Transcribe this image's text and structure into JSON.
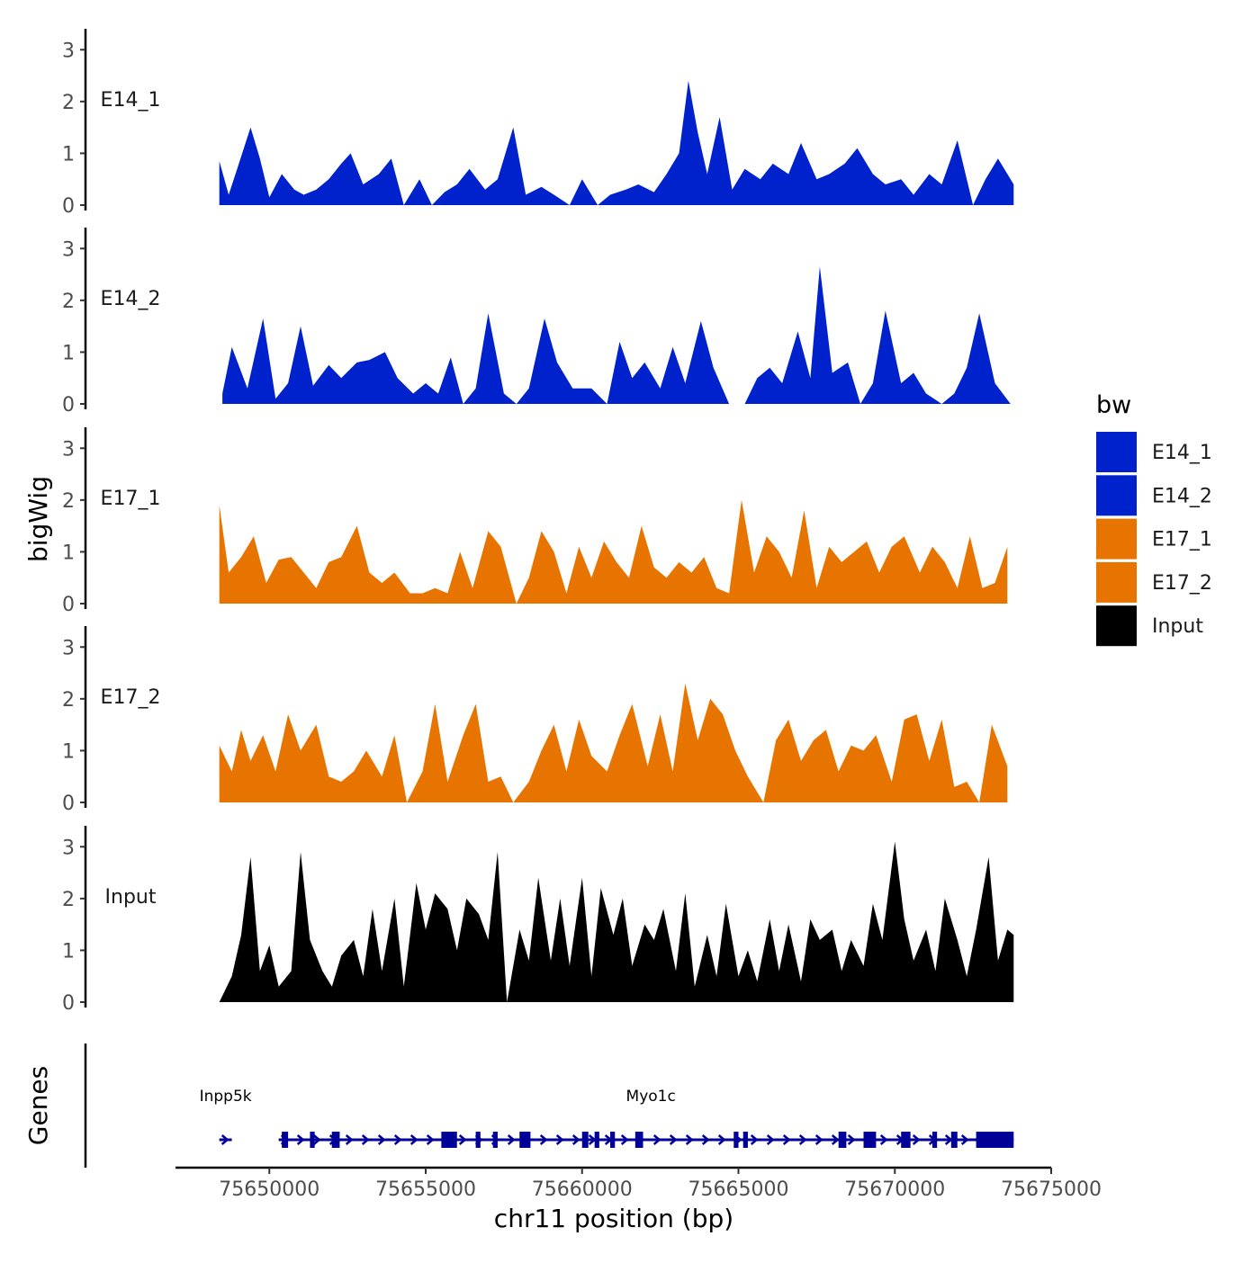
{
  "chart_data": {
    "type": "area",
    "chromosome": "chr11",
    "xlabel": "chr11 position (bp)",
    "ylabel": "bigWig",
    "genes_panel_label": "Genes",
    "xlim": [
      75647000,
      75675000
    ],
    "x_ticks": [
      75650000,
      75655000,
      75660000,
      75665000,
      75670000,
      75675000
    ],
    "x_tick_labels": [
      "75650000",
      "75655000",
      "75660000",
      "75665000",
      "75670000",
      "75675000"
    ],
    "ylim": [
      0,
      3.3
    ],
    "y_ticks": [
      0,
      1,
      2,
      3
    ],
    "y_tick_labels": [
      "0",
      "1",
      "2",
      "3"
    ],
    "legend": {
      "title": "bw",
      "entries": [
        {
          "label": "E14_1",
          "color": "#0022CC"
        },
        {
          "label": "E14_2",
          "color": "#0022CC"
        },
        {
          "label": "E17_1",
          "color": "#E87400"
        },
        {
          "label": "E17_2",
          "color": "#E87400"
        },
        {
          "label": "Input",
          "color": "#000000"
        }
      ]
    },
    "series": [
      {
        "name": "E14_1",
        "color": "#0022CC",
        "x": [
          75648400,
          75648700,
          75649000,
          75649400,
          75649700,
          75650000,
          75650400,
          75650800,
          75651100,
          75651500,
          75651900,
          75652300,
          75652600,
          75653000,
          75653500,
          75653900,
          75654300,
          75654800,
          75655200,
          75655600,
          75656000,
          75656400,
          75656900,
          75657300,
          75657800,
          75658200,
          75658700,
          75659100,
          75659600,
          75660000,
          75660500,
          75660900,
          75661400,
          75661800,
          75662300,
          75662700,
          75663100,
          75663400,
          75663700,
          75664000,
          75664400,
          75664800,
          75665200,
          75665700,
          75666100,
          75666600,
          75667000,
          75667500,
          75667900,
          75668400,
          75668800,
          75669300,
          75669700,
          75670200,
          75670600,
          75671100,
          75671500,
          75672000,
          75672500,
          75672900,
          75673300,
          75673800
        ],
        "values": [
          0.85,
          0.2,
          0.75,
          1.5,
          0.9,
          0.15,
          0.6,
          0.3,
          0.2,
          0.3,
          0.5,
          0.8,
          1.0,
          0.4,
          0.6,
          0.9,
          0.0,
          0.5,
          0.0,
          0.25,
          0.4,
          0.7,
          0.3,
          0.5,
          1.5,
          0.2,
          0.35,
          0.2,
          0.0,
          0.5,
          0.0,
          0.2,
          0.3,
          0.4,
          0.25,
          0.6,
          1.0,
          2.4,
          1.4,
          0.6,
          1.7,
          0.3,
          0.7,
          0.5,
          0.8,
          0.6,
          1.2,
          0.5,
          0.6,
          0.8,
          1.1,
          0.6,
          0.4,
          0.5,
          0.2,
          0.6,
          0.4,
          1.25,
          0.0,
          0.5,
          0.9,
          0.4
        ]
      },
      {
        "name": "E14_2",
        "color": "#0022CC",
        "x": [
          75648500,
          75648800,
          75649300,
          75649800,
          75650200,
          75650600,
          75651000,
          75651400,
          75651900,
          75652300,
          75652800,
          75653200,
          75653700,
          75654100,
          75654600,
          75655000,
          75655400,
          75655800,
          75656200,
          75656600,
          75657000,
          75657500,
          75657900,
          75658300,
          75658800,
          75659200,
          75659700,
          75660300,
          75660800,
          75661200,
          75661600,
          75662000,
          75662500,
          75662900,
          75663300,
          75663800,
          75664200,
          75664700,
          75665200,
          75665600,
          75666000,
          75666400,
          75666900,
          75667300,
          75667600,
          75668000,
          75668500,
          75668900,
          75669300,
          75669700,
          75670200,
          75670600,
          75671000,
          75671500,
          75671900,
          75672300,
          75672700,
          75673200,
          75673700
        ],
        "values": [
          0.2,
          1.1,
          0.3,
          1.65,
          0.1,
          0.4,
          1.5,
          0.35,
          0.75,
          0.5,
          0.8,
          0.85,
          1.0,
          0.5,
          0.2,
          0.4,
          0.2,
          0.9,
          0.0,
          0.3,
          1.75,
          0.2,
          0.0,
          0.3,
          1.65,
          0.8,
          0.3,
          0.3,
          0.0,
          1.2,
          0.5,
          0.8,
          0.3,
          1.1,
          0.4,
          1.6,
          0.7,
          0.0,
          0.0,
          0.5,
          0.7,
          0.4,
          1.4,
          0.5,
          2.65,
          0.6,
          0.8,
          0.0,
          0.4,
          1.8,
          0.4,
          0.6,
          0.2,
          0.0,
          0.2,
          0.7,
          1.75,
          0.4,
          0.0
        ]
      },
      {
        "name": "E17_1",
        "color": "#E87400",
        "x": [
          75648400,
          75648700,
          75649100,
          75649500,
          75649900,
          75650300,
          75650700,
          75651100,
          75651500,
          75651900,
          75652300,
          75652800,
          75653200,
          75653600,
          75654000,
          75654500,
          75654900,
          75655300,
          75655700,
          75656100,
          75656500,
          75657000,
          75657400,
          75657900,
          75658300,
          75658700,
          75659100,
          75659500,
          75659900,
          75660300,
          75660700,
          75661100,
          75661500,
          75661900,
          75662300,
          75662700,
          75663100,
          75663500,
          75663900,
          75664300,
          75664700,
          75665100,
          75665500,
          75665900,
          75666300,
          75666700,
          75667100,
          75667500,
          75667900,
          75668300,
          75668700,
          75669100,
          75669500,
          75669900,
          75670300,
          75670800,
          75671200,
          75671600,
          75672000,
          75672400,
          75672800,
          75673200,
          75673600
        ],
        "values": [
          1.9,
          0.6,
          0.9,
          1.3,
          0.4,
          0.85,
          0.9,
          0.6,
          0.3,
          0.8,
          0.9,
          1.5,
          0.6,
          0.4,
          0.6,
          0.2,
          0.2,
          0.3,
          0.2,
          1.0,
          0.3,
          1.4,
          1.1,
          0.0,
          0.5,
          1.4,
          1.0,
          0.2,
          1.1,
          0.5,
          1.2,
          0.8,
          0.5,
          1.5,
          0.7,
          0.5,
          0.8,
          0.6,
          0.9,
          0.3,
          0.2,
          2.0,
          0.6,
          1.3,
          1.0,
          0.5,
          1.8,
          0.3,
          1.1,
          0.8,
          1.0,
          1.2,
          0.6,
          1.1,
          1.3,
          0.6,
          1.1,
          0.8,
          0.3,
          1.3,
          0.3,
          0.4,
          1.1
        ]
      },
      {
        "name": "E17_2",
        "color": "#E87400",
        "x": [
          75648400,
          75648800,
          75649100,
          75649400,
          75649800,
          75650200,
          75650600,
          75651000,
          75651500,
          75651900,
          75652300,
          75652700,
          75653100,
          75653600,
          75654000,
          75654400,
          75654900,
          75655300,
          75655700,
          75656200,
          75656600,
          75657000,
          75657400,
          75657800,
          75658300,
          75658700,
          75659100,
          75659500,
          75659900,
          75660300,
          75660800,
          75661200,
          75661600,
          75662100,
          75662500,
          75662900,
          75663300,
          75663700,
          75664100,
          75664500,
          75664900,
          75665300,
          75665800,
          75666200,
          75666600,
          75667000,
          75667400,
          75667800,
          75668200,
          75668600,
          75669000,
          75669400,
          75669900,
          75670300,
          75670700,
          75671100,
          75671500,
          75671900,
          75672300,
          75672700,
          75673100,
          75673600
        ],
        "values": [
          1.1,
          0.6,
          1.4,
          0.8,
          1.3,
          0.6,
          1.7,
          1.0,
          1.5,
          0.5,
          0.4,
          0.6,
          1.0,
          0.5,
          1.3,
          0.0,
          0.6,
          1.9,
          0.4,
          1.3,
          1.9,
          0.4,
          0.5,
          0.0,
          0.4,
          1.0,
          1.5,
          0.6,
          1.6,
          0.9,
          0.6,
          1.3,
          1.9,
          0.7,
          1.7,
          0.6,
          2.3,
          1.2,
          2.0,
          1.7,
          1.0,
          0.5,
          0.0,
          1.2,
          1.6,
          0.8,
          1.2,
          1.4,
          0.6,
          1.1,
          1.0,
          1.3,
          0.4,
          1.6,
          1.7,
          0.8,
          1.6,
          0.3,
          0.4,
          0.0,
          1.5,
          0.7
        ]
      },
      {
        "name": "Input",
        "color": "#000000",
        "x": [
          75648400,
          75648800,
          75649100,
          75649400,
          75649700,
          75650000,
          75650300,
          75650700,
          75651000,
          75651300,
          75651700,
          75652000,
          75652300,
          75652700,
          75653000,
          75653300,
          75653600,
          75654000,
          75654300,
          75654700,
          75655000,
          75655300,
          75655700,
          75656000,
          75656300,
          75656700,
          75657000,
          75657300,
          75657600,
          75658000,
          75658300,
          75658600,
          75659000,
          75659300,
          75659600,
          75660000,
          75660300,
          75660600,
          75661000,
          75661300,
          75661600,
          75662000,
          75662300,
          75662600,
          75663000,
          75663300,
          75663600,
          75664000,
          75664300,
          75664600,
          75665000,
          75665300,
          75665600,
          75666000,
          75666300,
          75666600,
          75667000,
          75667300,
          75667600,
          75668000,
          75668300,
          75668600,
          75669000,
          75669300,
          75669600,
          75670000,
          75670300,
          75670600,
          75671000,
          75671300,
          75671600,
          75672000,
          75672300,
          75672600,
          75673000,
          75673300,
          75673600,
          75673800
        ],
        "values": [
          0.0,
          0.5,
          1.3,
          2.8,
          0.6,
          1.1,
          0.3,
          0.6,
          2.9,
          1.2,
          0.6,
          0.3,
          0.9,
          1.2,
          0.5,
          1.8,
          0.6,
          2.0,
          0.3,
          2.3,
          1.4,
          2.1,
          1.8,
          1.0,
          2.0,
          1.7,
          1.2,
          2.9,
          0.0,
          1.4,
          0.8,
          2.4,
          0.8,
          2.0,
          0.7,
          2.4,
          0.5,
          2.2,
          1.3,
          2.0,
          0.7,
          1.5,
          1.2,
          1.8,
          0.6,
          2.1,
          0.3,
          1.3,
          0.5,
          1.9,
          0.5,
          1.0,
          0.4,
          1.6,
          0.6,
          1.5,
          0.4,
          1.6,
          1.2,
          1.4,
          0.6,
          1.2,
          0.7,
          1.9,
          1.2,
          3.1,
          1.6,
          0.8,
          1.4,
          0.6,
          2.0,
          1.2,
          0.5,
          1.4,
          2.8,
          0.8,
          1.4,
          1.3
        ]
      }
    ],
    "genes": [
      {
        "name": "Inpp5k",
        "start": 75648400,
        "end": 75648800,
        "label_x": 75648600,
        "exons": []
      },
      {
        "name": "Myo1c",
        "start": 75650300,
        "end": 75673800,
        "label_x": 75662200,
        "exons": [
          [
            75650400,
            75650600
          ],
          [
            75651300,
            75651450
          ],
          [
            75652000,
            75652250
          ],
          [
            75655500,
            75656000
          ],
          [
            75656600,
            75656750
          ],
          [
            75657150,
            75657300
          ],
          [
            75658000,
            75658350
          ],
          [
            75660000,
            75660200
          ],
          [
            75660400,
            75660550
          ],
          [
            75660900,
            75661050
          ],
          [
            75661700,
            75661950
          ],
          [
            75664850,
            75665000
          ],
          [
            75665150,
            75665300
          ],
          [
            75668200,
            75668450
          ],
          [
            75669000,
            75669400
          ],
          [
            75670200,
            75670500
          ],
          [
            75671200,
            75671350
          ],
          [
            75671800,
            75672000
          ],
          [
            75672600,
            75673800
          ]
        ]
      }
    ]
  }
}
